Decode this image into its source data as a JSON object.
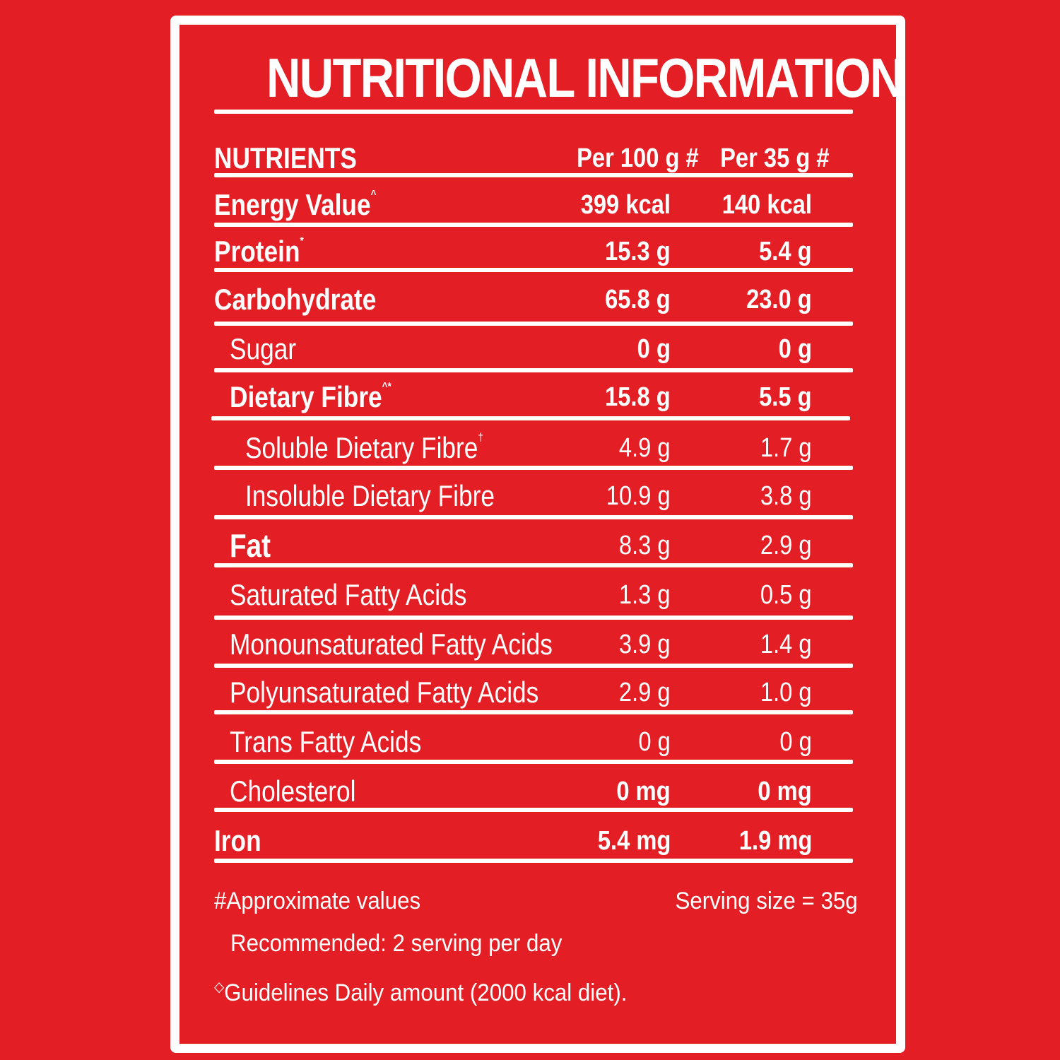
{
  "title": "NUTRITIONAL INFORMATION",
  "header": {
    "label": "NUTRIENTS",
    "col1": "Per 100 g #",
    "col2": "Per 35 g #"
  },
  "rows": [
    {
      "label": "Energy Value",
      "mark": "^",
      "v1": "399 kcal",
      "v2": "140 kcal"
    },
    {
      "label": "Protein",
      "mark": "*",
      "v1": "15.3 g",
      "v2": "5.4 g"
    },
    {
      "label": "Carbohydrate",
      "mark": "",
      "v1": "65.8 g",
      "v2": "23.0 g"
    },
    {
      "label": "Sugar",
      "mark": "",
      "v1": "0 g",
      "v2": "0 g"
    },
    {
      "label": "Dietary Fibre",
      "mark": "^*",
      "v1": "15.8 g",
      "v2": "5.5 g"
    },
    {
      "label": "Soluble Dietary Fibre",
      "mark": "†",
      "v1": "4.9 g",
      "v2": "1.7 g"
    },
    {
      "label": "Insoluble Dietary Fibre",
      "mark": "",
      "v1": "10.9 g",
      "v2": "3.8 g"
    },
    {
      "label": "Fat",
      "mark": "",
      "v1": "8.3 g",
      "v2": "2.9 g"
    },
    {
      "label": "Saturated Fatty Acids",
      "mark": "",
      "v1": "1.3 g",
      "v2": "0.5 g"
    },
    {
      "label": "Monounsaturated Fatty Acids",
      "mark": "",
      "v1": "3.9 g",
      "v2": "1.4 g"
    },
    {
      "label": "Polyunsaturated Fatty Acids",
      "mark": "",
      "v1": "2.9 g",
      "v2": "1.0 g"
    },
    {
      "label": "Trans Fatty Acids",
      "mark": "",
      "v1": "0 g",
      "v2": "0 g"
    },
    {
      "label": "Cholesterol",
      "mark": "",
      "v1": "0 mg",
      "v2": "0 mg"
    },
    {
      "label": "Iron",
      "mark": "",
      "v1": "5.4 mg",
      "v2": "1.9 mg"
    }
  ],
  "footer": {
    "approx": "#Approximate values",
    "serving": "Serving  size = 35g",
    "recommended": "Recommended: 2 serving per day",
    "gda_mark": "◇",
    "gda": "Guidelines Daily amount (2000 kcal diet)."
  },
  "colors": {
    "background": "#e31e24",
    "text": "#ffffff"
  }
}
